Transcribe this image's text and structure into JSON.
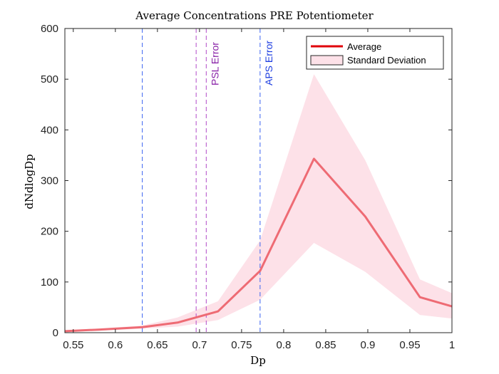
{
  "chart_data": {
    "type": "line",
    "title": "Average Concentrations PRE Potentiometer",
    "xlabel": "Dp",
    "ylabel": "dNdlogDp",
    "xlim": [
      0.54,
      1.0
    ],
    "ylim": [
      0,
      600
    ],
    "xticks": [
      0.55,
      0.6,
      0.65,
      0.7,
      0.75,
      0.8,
      0.85,
      0.9,
      0.95,
      1
    ],
    "xtick_labels": [
      "0.55",
      "0.6",
      "0.65",
      "0.7",
      "0.75",
      "0.8",
      "0.85",
      "0.9",
      "0.95",
      "1"
    ],
    "yticks": [
      0,
      100,
      200,
      300,
      400,
      500,
      600
    ],
    "ytick_labels": [
      "0",
      "100",
      "200",
      "300",
      "400",
      "500",
      "600"
    ],
    "grid": false,
    "legend_position": "top-right",
    "series": [
      {
        "name": "Average",
        "color": "#ee6b74",
        "x": [
          0.54,
          0.58,
          0.632,
          0.674,
          0.722,
          0.772,
          0.836,
          0.897,
          0.962,
          1.0
        ],
        "y": [
          3,
          6,
          11,
          20,
          42,
          122,
          343,
          229,
          70,
          52
        ]
      }
    ],
    "band": {
      "name": "Standard Deviation",
      "color": "#fde1e8",
      "x": [
        0.54,
        0.58,
        0.632,
        0.674,
        0.722,
        0.772,
        0.836,
        0.897,
        0.962,
        1.0
      ],
      "upper": [
        5,
        8,
        14,
        30,
        62,
        182,
        510,
        340,
        105,
        78
      ],
      "lower": [
        1,
        4,
        8,
        12,
        25,
        65,
        177,
        120,
        35,
        28
      ]
    },
    "vertical_lines": [
      {
        "x": 0.632,
        "color": "#3b63f0",
        "label": ""
      },
      {
        "x": 0.696,
        "color": "#b24bc8",
        "label": ""
      },
      {
        "x": 0.708,
        "color": "#b24bc8",
        "label": "PSL Error",
        "label_color": "#8a24a8"
      },
      {
        "x": 0.772,
        "color": "#3b63f0",
        "label": "APS Error",
        "label_color": "#1f3fe0"
      }
    ],
    "legend": {
      "entries": [
        {
          "label": "Average",
          "color": "#e0000a",
          "kind": "line"
        },
        {
          "label": "Standard Deviation",
          "color": "#fde1e8",
          "kind": "patch"
        }
      ]
    }
  }
}
